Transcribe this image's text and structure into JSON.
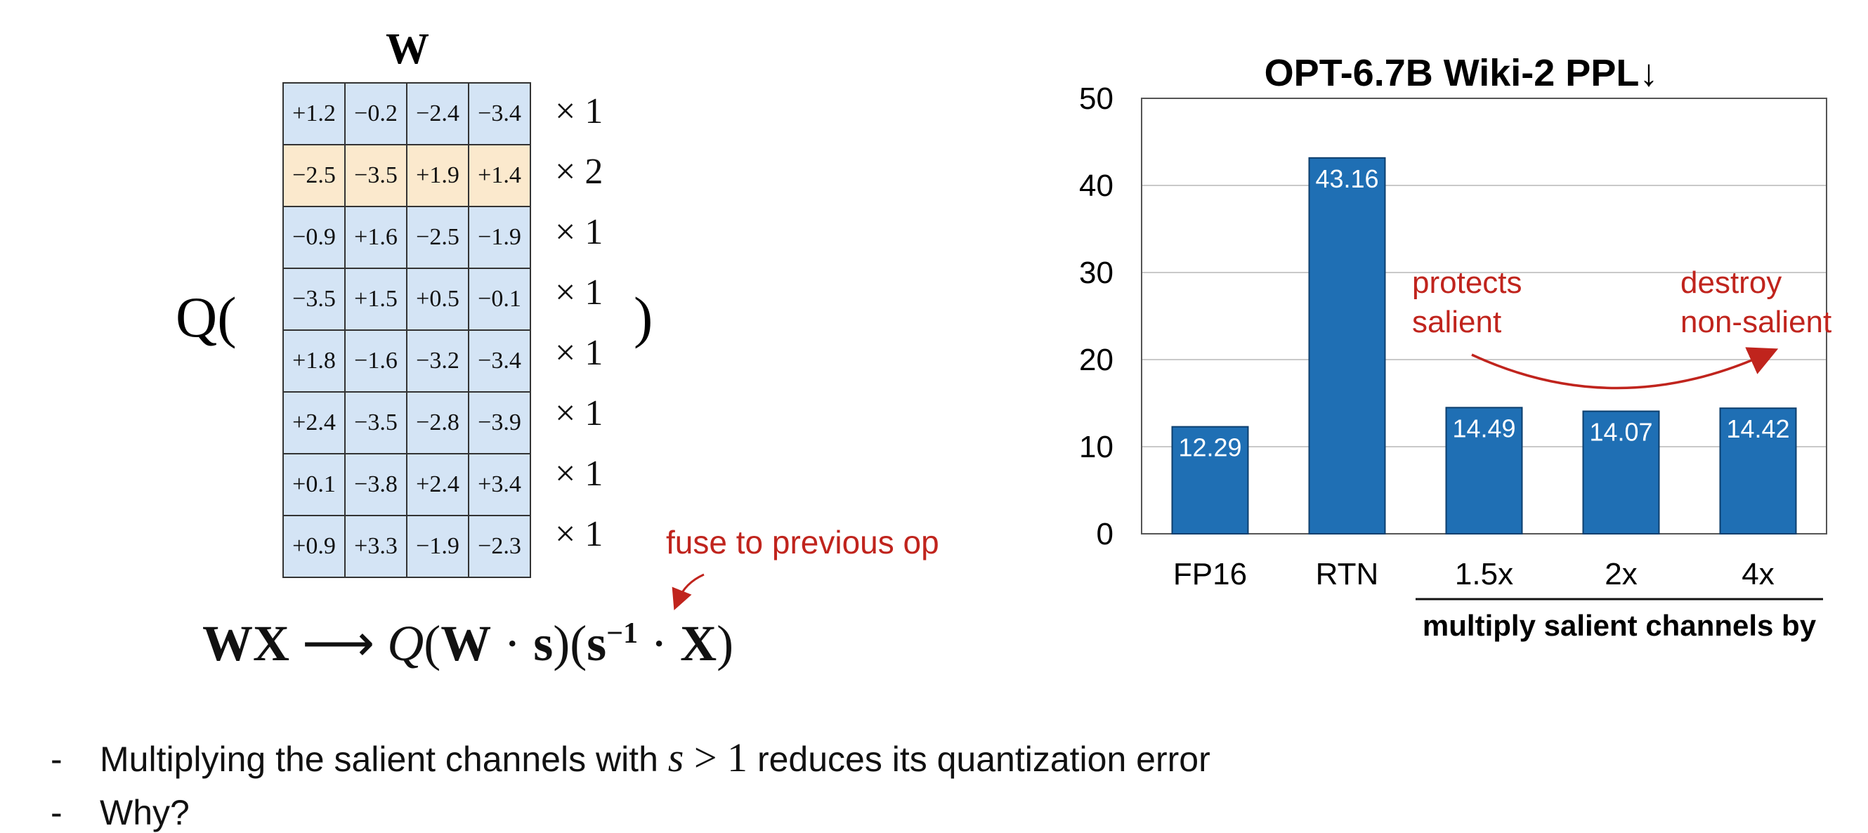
{
  "matrix": {
    "title": "W",
    "q_open": "Q(",
    "q_close": ")",
    "rows": [
      {
        "cells": [
          "+1.2",
          "−0.2",
          "−2.4",
          "−3.4"
        ],
        "multiplier": "× 1",
        "highlighted": false
      },
      {
        "cells": [
          "−2.5",
          "−3.5",
          "+1.9",
          "+1.4"
        ],
        "multiplier": "× 2",
        "highlighted": true
      },
      {
        "cells": [
          "−0.9",
          "+1.6",
          "−2.5",
          "−1.9"
        ],
        "multiplier": "× 1",
        "highlighted": false
      },
      {
        "cells": [
          "−3.5",
          "+1.5",
          "+0.5",
          "−0.1"
        ],
        "multiplier": "× 1",
        "highlighted": false
      },
      {
        "cells": [
          "+1.8",
          "−1.6",
          "−3.2",
          "−3.4"
        ],
        "multiplier": "× 1",
        "highlighted": false
      },
      {
        "cells": [
          "+2.4",
          "−3.5",
          "−2.8",
          "−3.9"
        ],
        "multiplier": "× 1",
        "highlighted": false
      },
      {
        "cells": [
          "+0.1",
          "−3.8",
          "+2.4",
          "+3.4"
        ],
        "multiplier": "× 1",
        "highlighted": false
      },
      {
        "cells": [
          "+0.9",
          "+3.3",
          "−1.9",
          "−2.3"
        ],
        "multiplier": "× 1",
        "highlighted": false
      }
    ],
    "colors": {
      "cell": "#d4e4f5",
      "salient_cell": "#fbe9cd"
    }
  },
  "annotation": {
    "fuse": "fuse to previous op",
    "color": "#c0241d"
  },
  "formula": {
    "lhs": "WX",
    "arrow": "⟶",
    "q": "Q",
    "w": "W",
    "dot": "·",
    "s": "s",
    "s_inv_exp": "−1",
    "x": "X"
  },
  "chart_data": {
    "type": "bar",
    "title": "OPT-6.7B Wiki-2 PPL↓",
    "categories": [
      "FP16",
      "RTN",
      "1.5x",
      "2x",
      "4x"
    ],
    "values": [
      12.29,
      43.16,
      14.49,
      14.07,
      14.42
    ],
    "value_labels": [
      "12.29",
      "43.16",
      "14.49",
      "14.07",
      "14.42"
    ],
    "xlabel": "multiply salient channels by",
    "xlabel_spans_categories": [
      "1.5x",
      "2x",
      "4x"
    ],
    "ylabel": "",
    "ylim": [
      0,
      50
    ],
    "yticks": [
      0,
      10,
      20,
      30,
      40,
      50
    ],
    "grid": true,
    "bar_color": "#1f6fb4",
    "annotations": [
      {
        "text_lines": [
          "protects",
          "salient"
        ],
        "color": "#c0241d"
      },
      {
        "text_lines": [
          "destroy",
          "non-salient"
        ],
        "color": "#c0241d"
      }
    ]
  },
  "bullets": [
    {
      "dash": "-",
      "before": "Multiplying the salient channels with ",
      "math_var": "s",
      "math_rest": " > 1",
      "after": " reduces its quantization error"
    },
    {
      "dash": "-",
      "before": "Why?",
      "math_var": "",
      "math_rest": "",
      "after": ""
    }
  ]
}
